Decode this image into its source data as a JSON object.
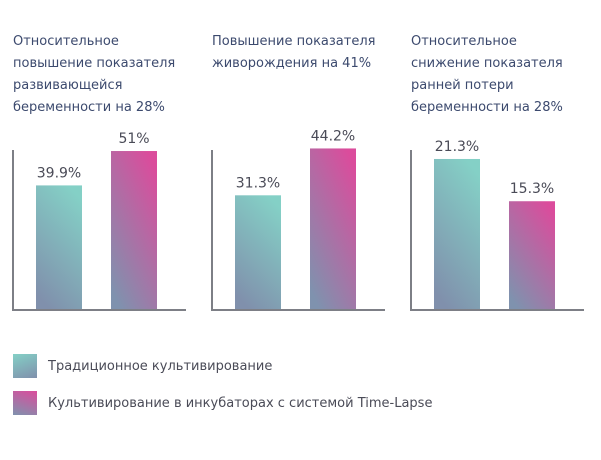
{
  "colors": {
    "traditional_top": "#84d0c6",
    "traditional_bottom": "#8090ac",
    "timelapse_top": "#db4c9c",
    "timelapse_bottom": "#7f92ae",
    "axis": "#7d7f86",
    "label": "#4a4b57",
    "title": "#3c4a6e"
  },
  "chart_data": [
    {
      "type": "bar",
      "title": "Относительное повышение показателя развивающейся беременности на 28%",
      "title_lines": [
        "Относительное",
        "повышение показателя",
        "развивающейся",
        "беременности на 28%"
      ],
      "categories": [
        "Традиционное культивирование",
        "Культивирование в инкубаторах с системой Time-Lapse"
      ],
      "values": [
        39.9,
        51
      ],
      "labels": [
        "39.9%",
        "51%"
      ],
      "ylim": [
        0,
        52.3
      ]
    },
    {
      "type": "bar",
      "title": "Повышение показателя живорождения на 41%",
      "title_lines": [
        "Повышение показателя",
        "живорождения на 41%"
      ],
      "categories": [
        "Традиционное культивирование",
        "Культивирование в инкубаторах с системой Time-Lapse"
      ],
      "values": [
        31.3,
        44.2
      ],
      "labels": [
        "31.3%",
        "44.2%"
      ],
      "ylim": [
        0,
        44.6
      ]
    },
    {
      "type": "bar",
      "title": "Относительное снижение показателя ранней потери беременности на 28%",
      "title_lines": [
        "Относительное",
        "снижение показателя",
        "ранней потери",
        "беременности на 28%"
      ],
      "categories": [
        "Традиционное культивирование",
        "Культивирование в инкубаторах с системой Time-Lapse"
      ],
      "values": [
        21.3,
        15.3
      ],
      "labels": [
        "21.3%",
        "15.3%"
      ],
      "ylim": [
        0,
        23
      ]
    }
  ],
  "legend": [
    {
      "label": "Традиционное культивирование"
    },
    {
      "label": "Культивирование в инкубаторах с системой Time-Lapse"
    }
  ]
}
